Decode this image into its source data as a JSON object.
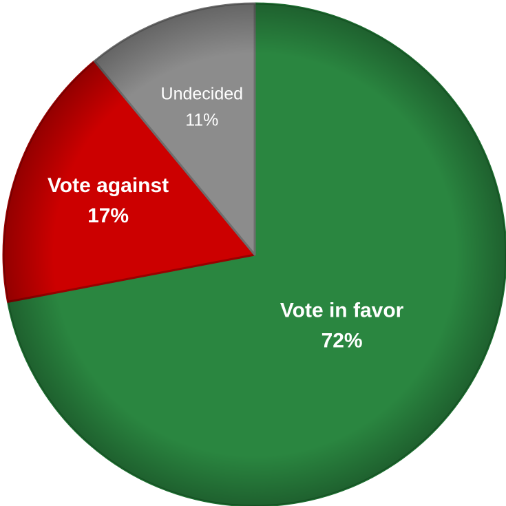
{
  "chart_data": {
    "type": "pie",
    "title": "",
    "start_angle_deg": 0,
    "direction": "clockwise",
    "slices": [
      {
        "label": "Vote in favor",
        "value": 72,
        "pct_label": "72%",
        "color": "#2a8640",
        "edge": "#1d6e30",
        "label_color": "#ffffff",
        "bold": true
      },
      {
        "label": "Vote against",
        "value": 17,
        "pct_label": "17%",
        "color": "#cc0000",
        "edge": "#990000",
        "label_color": "#ffffff",
        "bold": true
      },
      {
        "label": "Undecided",
        "value": 11,
        "pct_label": "11%",
        "color": "#8c8c8c",
        "edge": "#6e6e6e",
        "label_color": "#ffffff",
        "bold": false
      }
    ]
  }
}
